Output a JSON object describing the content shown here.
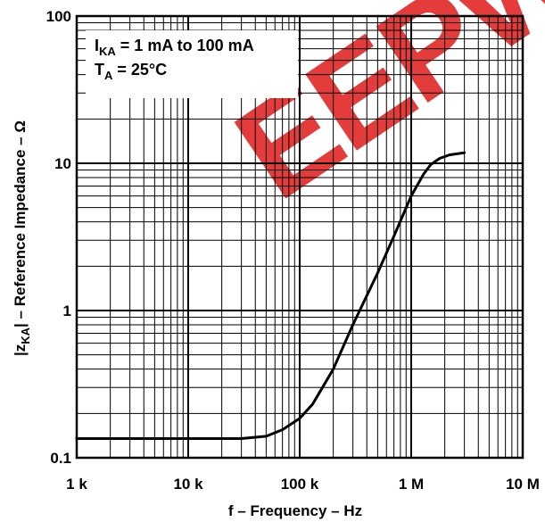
{
  "chart_data": {
    "type": "line",
    "xscale": "log",
    "yscale": "log",
    "xlim": [
      1000,
      10000000
    ],
    "ylim": [
      0.1,
      100
    ],
    "grid": true,
    "x_ticks": [
      {
        "value": 1000,
        "label": "1 k"
      },
      {
        "value": 10000,
        "label": "10 k"
      },
      {
        "value": 100000,
        "label": "100 k"
      },
      {
        "value": 1000000,
        "label": "1 M"
      },
      {
        "value": 10000000,
        "label": "10 M"
      }
    ],
    "y_ticks": [
      {
        "value": 100,
        "label": "100"
      },
      {
        "value": 10,
        "label": "10"
      },
      {
        "value": 1,
        "label": "1"
      },
      {
        "value": 0.1,
        "label": "0.1"
      }
    ],
    "xlabel": "f – Frequency – Hz",
    "ylabel": {
      "prefix": "|z",
      "subscript": "KA",
      "suffix": "| – Reference Impedance – Ω"
    },
    "annotations": [
      {
        "main": "I",
        "subscript": "KA",
        "rest": " = 1 mA to 100 mA"
      },
      {
        "main": "T",
        "subscript": "A",
        "rest": " = 25°C"
      }
    ],
    "series": [
      {
        "x": [
          1000,
          3000,
          10000,
          30000,
          50000,
          70000,
          100000,
          130000,
          160000,
          200000,
          300000,
          500000,
          700000,
          1000000,
          1300000,
          1500000,
          1800000,
          2200000,
          3000000
        ],
        "y": [
          0.135,
          0.135,
          0.135,
          0.135,
          0.14,
          0.155,
          0.185,
          0.23,
          0.3,
          0.4,
          0.8,
          1.8,
          3.2,
          6.0,
          8.5,
          9.8,
          10.8,
          11.4,
          11.8
        ]
      }
    ],
    "watermark": "EEPW",
    "colors": {
      "line": "#000000",
      "grid": "#000000",
      "watermark": "#e02020"
    }
  }
}
